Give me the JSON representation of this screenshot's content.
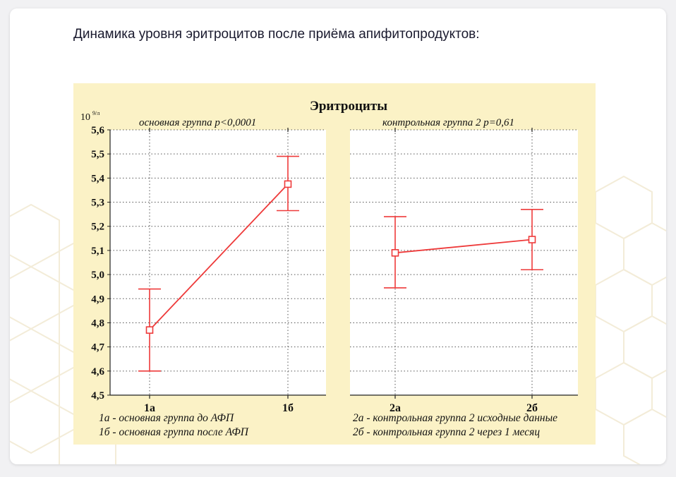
{
  "page": {
    "heading": "Динамика уровня эритроцитов после приёма апифитопродуктов:"
  },
  "chart_data": {
    "type": "line",
    "title": "Эритроциты",
    "ylabel": "10 9/л",
    "ylabel_base": "10",
    "ylabel_sup": "9/л",
    "ylim": [
      4.5,
      5.6
    ],
    "yticks": [
      "4,5",
      "4,6",
      "4,7",
      "4,8",
      "4,9",
      "5,0",
      "5,1",
      "5,2",
      "5,3",
      "5,4",
      "5,5",
      "5,6"
    ],
    "grid": true,
    "line_color": "#ee3a3a",
    "panels": [
      {
        "subtitle": "основная группа p<0,0001",
        "categories": [
          "1а",
          "1б"
        ],
        "values": [
          4.77,
          5.375
        ],
        "error_low": [
          4.6,
          5.265
        ],
        "error_high": [
          4.94,
          5.49
        ],
        "legend": [
          "1а - основная группа до АФП",
          "1б - основная группа после АФП"
        ]
      },
      {
        "subtitle": "контрольная группа 2 p=0,61",
        "categories": [
          "2а",
          "2б"
        ],
        "values": [
          5.09,
          5.145
        ],
        "error_low": [
          4.945,
          5.02
        ],
        "error_high": [
          5.24,
          5.27
        ],
        "legend": [
          "2а - контрольная группа 2 исходные данные",
          "2б - контрольная группа 2 через 1 месяц"
        ]
      }
    ]
  }
}
